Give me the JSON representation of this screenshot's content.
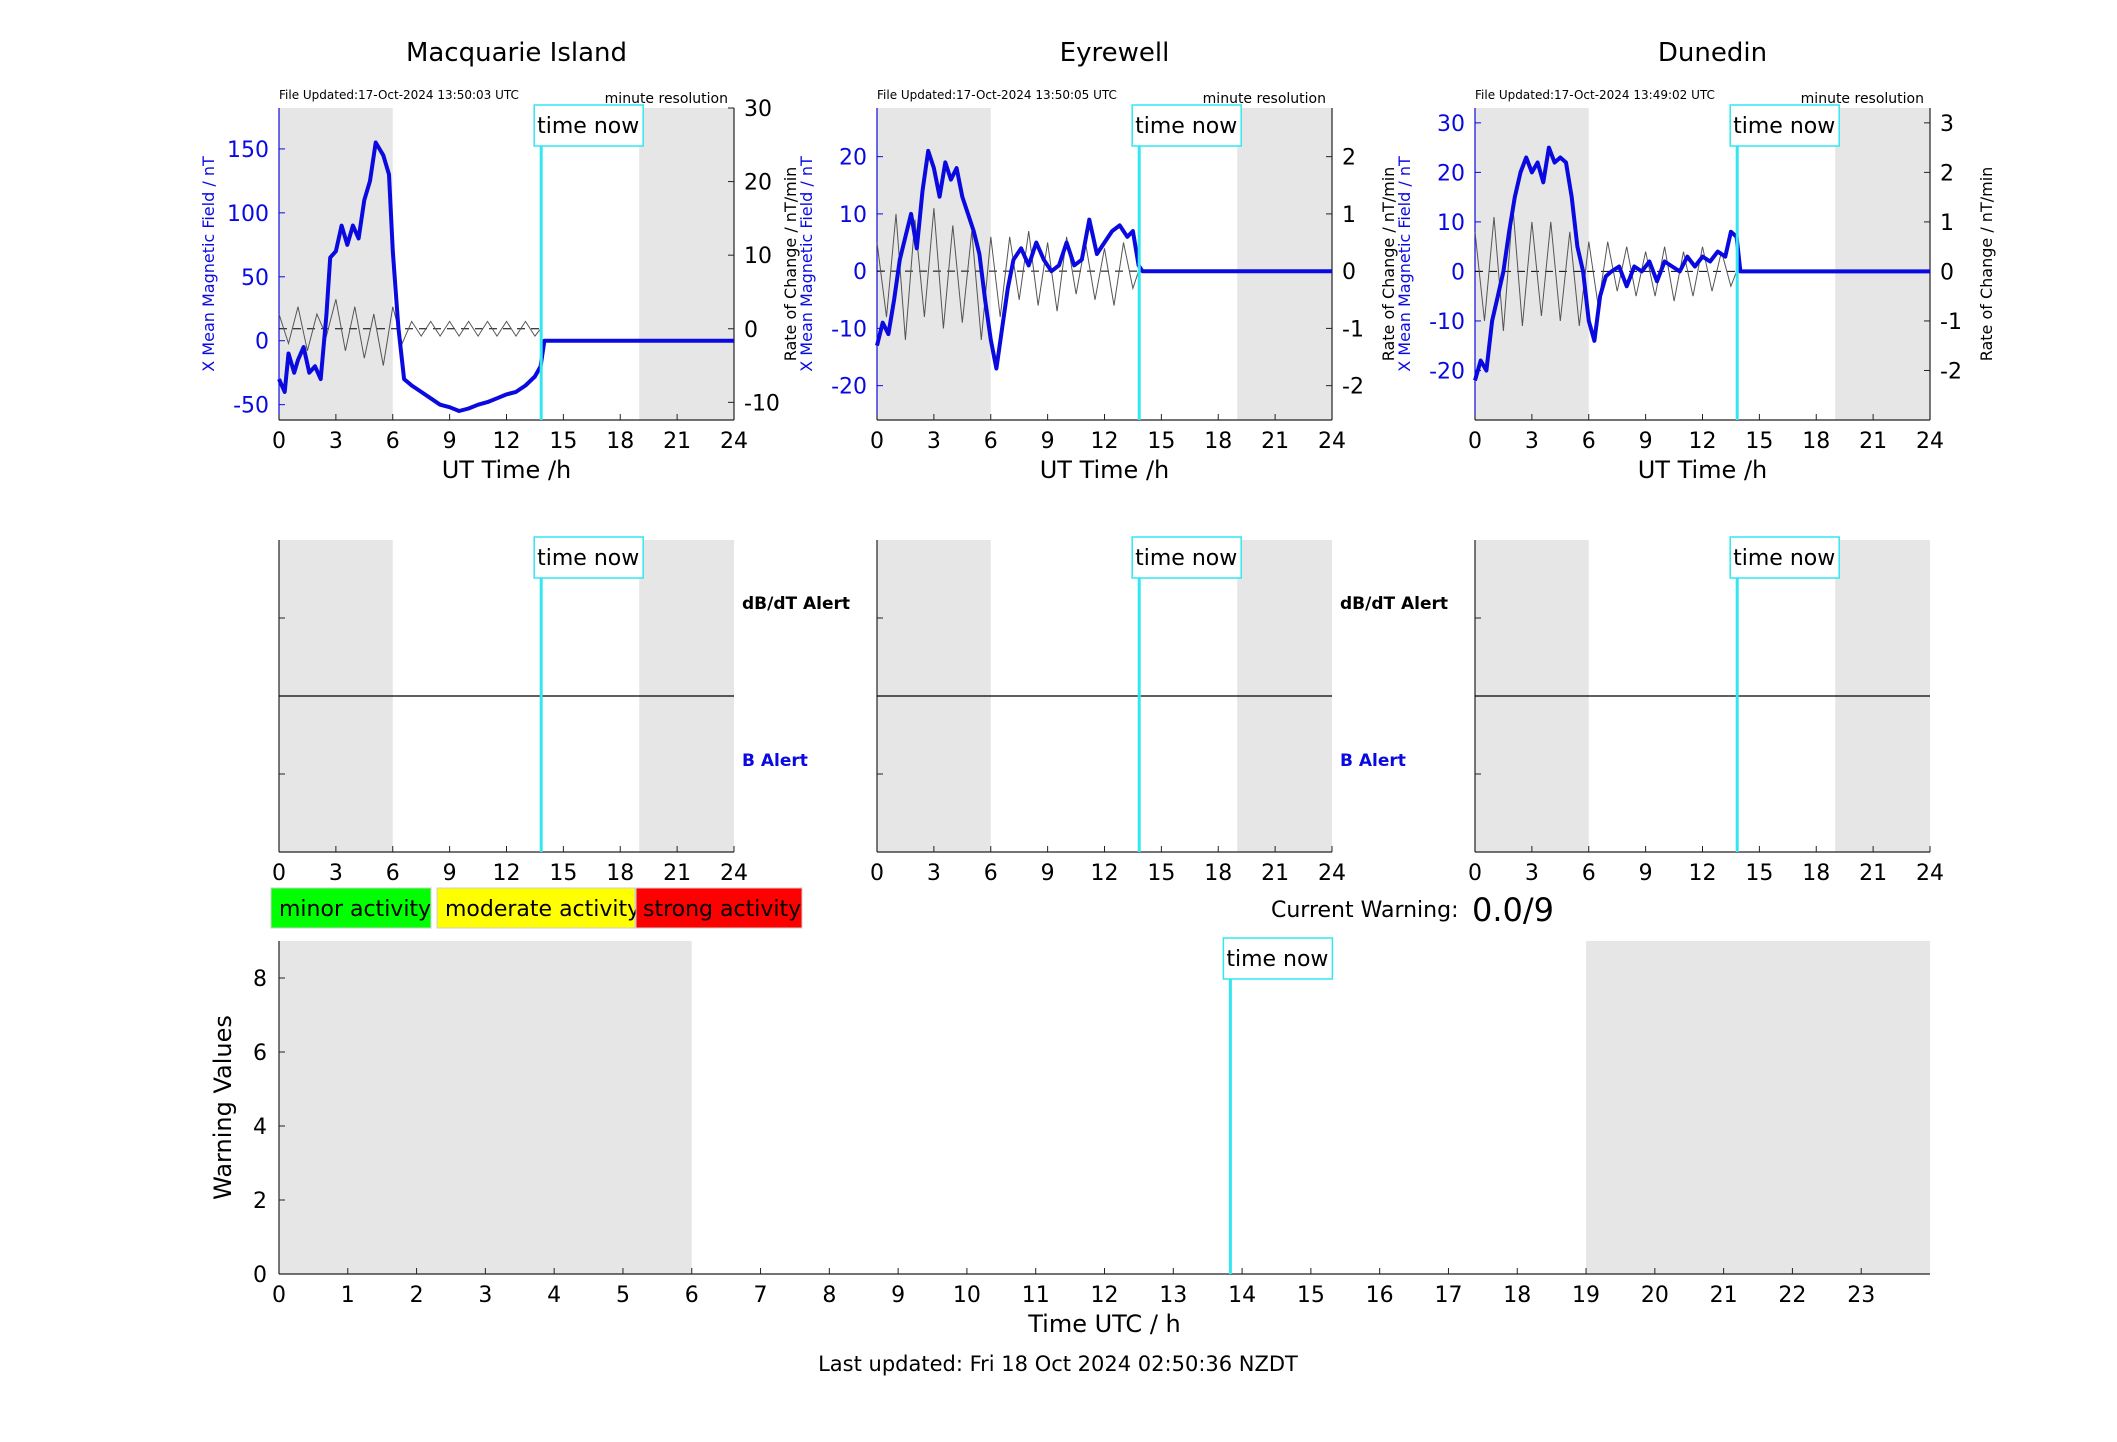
{
  "colors": {
    "blue": "#0a0ae0",
    "cyan": "#33e6f0",
    "night_shading": "#e6e6e6",
    "rate_trace": "#555555",
    "minor": "#00ff00",
    "moderate": "#ffff00",
    "strong": "#ff0000"
  },
  "time_now_label": "time now",
  "legend": {
    "minor": "minor activity",
    "moderate": "moderate activity",
    "strong": "strong activity"
  },
  "current_warning": {
    "label": "Current Warning:",
    "value": "0.0/9"
  },
  "footer": "Last updated: Fri 18 Oct 2024 02:50:36 NZDT",
  "chart_data": [
    {
      "type": "line",
      "title": "Macquarie Island",
      "file_updated": "File Updated:17-Oct-2024 13:50:03 UTC",
      "resolution": "minute resolution",
      "xlabel": "UT Time /h",
      "ylabel_left": "X Mean Magnetic Field / nT",
      "ylabel_right": "Rate of Change / nT/min",
      "xlim": [
        0,
        24
      ],
      "xticks": [
        0,
        3,
        6,
        9,
        12,
        15,
        18,
        21,
        24
      ],
      "ylim_left": [
        -62,
        182
      ],
      "yticks_left": [
        -50,
        0,
        50,
        100,
        150
      ],
      "ylim_right": [
        -12.4,
        30
      ],
      "yticks_right": [
        -10,
        0,
        10,
        20,
        30
      ],
      "night_bands": [
        [
          0,
          6
        ],
        [
          19,
          24
        ]
      ],
      "time_now": 13.83,
      "field_series": {
        "name": "X Mean Magnetic Field",
        "x": [
          0,
          0.3,
          0.5,
          0.8,
          1.0,
          1.3,
          1.6,
          1.9,
          2.2,
          2.5,
          2.7,
          3.0,
          3.3,
          3.6,
          3.9,
          4.2,
          4.5,
          4.8,
          5.1,
          5.3,
          5.5,
          5.8,
          6.0,
          6.3,
          6.6,
          7.0,
          7.5,
          8.0,
          8.5,
          9.0,
          9.5,
          10.0,
          10.5,
          11.0,
          11.5,
          12.0,
          12.5,
          13.0,
          13.5,
          13.8,
          14,
          24
        ],
        "y": [
          -30,
          -40,
          -10,
          -25,
          -15,
          -5,
          -25,
          -20,
          -30,
          20,
          65,
          70,
          90,
          75,
          90,
          80,
          110,
          125,
          155,
          150,
          145,
          130,
          70,
          10,
          -30,
          -35,
          -40,
          -45,
          -50,
          -52,
          -55,
          -53,
          -50,
          -48,
          -45,
          -42,
          -40,
          -35,
          -28,
          -20,
          0,
          0
        ]
      },
      "rate_series": {
        "name": "Rate of Change",
        "x": [
          0,
          0.5,
          1,
          1.5,
          2,
          2.5,
          3,
          3.5,
          4,
          4.5,
          5,
          5.5,
          6,
          6.5,
          7,
          7.5,
          8,
          8.5,
          9,
          9.5,
          10,
          10.5,
          11,
          11.5,
          12,
          12.5,
          13,
          13.5,
          13.8
        ],
        "y": [
          2,
          -2,
          3,
          -3,
          2,
          -1,
          4,
          -3,
          3,
          -4,
          2,
          -5,
          3,
          -2,
          1,
          -1,
          1,
          -1,
          1,
          -1,
          1,
          -1,
          1,
          -1,
          1,
          -1,
          1,
          -1,
          0
        ]
      }
    },
    {
      "type": "line",
      "title": "Eyrewell",
      "file_updated": "File Updated:17-Oct-2024 13:50:05 UTC",
      "resolution": "minute resolution",
      "xlabel": "UT Time /h",
      "ylabel_left": "X Mean Magnetic Field / nT",
      "ylabel_right": "Rate of Change / nT/min",
      "xlim": [
        0,
        24
      ],
      "xticks": [
        0,
        3,
        6,
        9,
        12,
        15,
        18,
        21,
        24
      ],
      "ylim_left": [
        -26,
        28.5
      ],
      "yticks_left": [
        -20,
        -10,
        0,
        10,
        20
      ],
      "ylim_right": [
        -2.6,
        2.85
      ],
      "yticks_right": [
        -2,
        -1,
        0,
        1,
        2
      ],
      "night_bands": [
        [
          0,
          6
        ],
        [
          19,
          24
        ]
      ],
      "time_now": 13.83,
      "field_series": {
        "name": "X Mean Magnetic Field",
        "x": [
          0,
          0.3,
          0.6,
          0.9,
          1.2,
          1.5,
          1.8,
          2.1,
          2.4,
          2.7,
          3.0,
          3.3,
          3.6,
          3.9,
          4.2,
          4.5,
          4.8,
          5.1,
          5.4,
          5.7,
          6.0,
          6.3,
          6.6,
          6.9,
          7.2,
          7.6,
          8.0,
          8.4,
          8.8,
          9.2,
          9.6,
          10.0,
          10.4,
          10.8,
          11.2,
          11.6,
          12.0,
          12.4,
          12.8,
          13.2,
          13.5,
          13.8,
          14,
          24
        ],
        "y": [
          -13,
          -9,
          -11,
          -5,
          2,
          6,
          10,
          4,
          14,
          21,
          18,
          13,
          19,
          16,
          18,
          13,
          10,
          7,
          3,
          -5,
          -12,
          -17,
          -10,
          -3,
          2,
          4,
          1,
          5,
          2,
          0,
          1,
          5,
          1,
          2,
          9,
          3,
          5,
          7,
          8,
          6,
          7,
          1,
          0,
          0
        ]
      },
      "rate_series": {
        "name": "Rate of Change",
        "x": [
          0,
          0.5,
          1,
          1.5,
          2,
          2.5,
          3,
          3.5,
          4,
          4.5,
          5,
          5.5,
          6,
          6.5,
          7,
          7.5,
          8,
          8.5,
          9,
          9.5,
          10,
          10.5,
          11,
          11.5,
          12,
          12.5,
          13,
          13.5,
          13.8
        ],
        "y": [
          0.5,
          -0.8,
          1,
          -1.2,
          0.9,
          -0.8,
          1.1,
          -1,
          0.8,
          -0.9,
          0.7,
          -1.2,
          0.6,
          -0.8,
          0.6,
          -0.5,
          0.7,
          -0.6,
          0.5,
          -0.7,
          0.6,
          -0.4,
          0.5,
          -0.5,
          0.4,
          -0.6,
          0.5,
          -0.3,
          0
        ]
      }
    },
    {
      "type": "line",
      "title": "Dunedin",
      "file_updated": "File Updated:17-Oct-2024 13:49:02 UTC",
      "resolution": "minute resolution",
      "xlabel": "UT Time /h",
      "ylabel_left": "X Mean Magnetic Field / nT",
      "ylabel_right": "Rate of Change / nT/min",
      "xlim": [
        0,
        24
      ],
      "xticks": [
        0,
        3,
        6,
        9,
        12,
        15,
        18,
        21,
        24
      ],
      "ylim_left": [
        -30,
        33
      ],
      "yticks_left": [
        -20,
        -10,
        0,
        10,
        20,
        30
      ],
      "ylim_right": [
        -3,
        3.3
      ],
      "yticks_right": [
        -2,
        -1,
        0,
        1,
        2,
        3
      ],
      "night_bands": [
        [
          0,
          6
        ],
        [
          19,
          24
        ]
      ],
      "time_now": 13.83,
      "field_series": {
        "name": "X Mean Magnetic Field",
        "x": [
          0,
          0.3,
          0.6,
          0.9,
          1.2,
          1.5,
          1.8,
          2.1,
          2.4,
          2.7,
          3.0,
          3.3,
          3.6,
          3.9,
          4.2,
          4.5,
          4.8,
          5.1,
          5.4,
          5.7,
          6.0,
          6.3,
          6.6,
          6.9,
          7.2,
          7.6,
          8.0,
          8.4,
          8.8,
          9.2,
          9.6,
          10.0,
          10.4,
          10.8,
          11.2,
          11.6,
          12.0,
          12.4,
          12.8,
          13.2,
          13.5,
          13.8,
          14,
          24
        ],
        "y": [
          -22,
          -18,
          -20,
          -10,
          -5,
          0,
          8,
          15,
          20,
          23,
          20,
          22,
          18,
          25,
          22,
          23,
          22,
          15,
          5,
          0,
          -10,
          -14,
          -5,
          -1,
          0,
          1,
          -3,
          1,
          0,
          2,
          -2,
          2,
          1,
          0,
          3,
          1,
          3,
          2,
          4,
          3,
          8,
          7,
          0,
          0
        ]
      },
      "rate_series": {
        "name": "Rate of Change",
        "x": [
          0,
          0.5,
          1,
          1.5,
          2,
          2.5,
          3,
          3.5,
          4,
          4.5,
          5,
          5.5,
          6,
          6.5,
          7,
          7.5,
          8,
          8.5,
          9,
          9.5,
          10,
          10.5,
          11,
          11.5,
          12,
          12.5,
          13,
          13.5,
          13.8
        ],
        "y": [
          0.8,
          -1,
          1.1,
          -1.2,
          1.3,
          -1.1,
          1,
          -0.9,
          1,
          -1,
          0.8,
          -1.1,
          0.6,
          -0.7,
          0.6,
          -0.4,
          0.5,
          -0.5,
          0.4,
          -0.5,
          0.5,
          -0.6,
          0.4,
          -0.5,
          0.5,
          -0.4,
          0.4,
          -0.3,
          0
        ]
      }
    },
    {
      "type": "line",
      "title": "",
      "xlabel": "",
      "labels": {
        "upper": "dB/dT Alert",
        "lower": "B Alert"
      },
      "xlim": [
        0,
        24
      ],
      "xticks": [
        0,
        3,
        6,
        9,
        12,
        15,
        18,
        21,
        24
      ],
      "night_bands": [
        [
          0,
          6
        ],
        [
          19,
          24
        ]
      ],
      "time_now": 13.83
    },
    {
      "type": "line",
      "title": "",
      "xlabel": "",
      "labels": {
        "upper": "dB/dT Alert",
        "lower": "B Alert"
      },
      "xlim": [
        0,
        24
      ],
      "xticks": [
        0,
        3,
        6,
        9,
        12,
        15,
        18,
        21,
        24
      ],
      "night_bands": [
        [
          0,
          6
        ],
        [
          19,
          24
        ]
      ],
      "time_now": 13.83
    },
    {
      "type": "line",
      "title": "",
      "xlabel": "",
      "labels": {
        "upper": "",
        "lower": ""
      },
      "xlim": [
        0,
        24
      ],
      "xticks": [
        0,
        3,
        6,
        9,
        12,
        15,
        18,
        21,
        24
      ],
      "night_bands": [
        [
          0,
          6
        ],
        [
          19,
          24
        ]
      ],
      "time_now": 13.83
    },
    {
      "type": "line",
      "title": "",
      "xlabel": "Time UTC / h",
      "ylabel": "Warning Values",
      "xlim": [
        0,
        24
      ],
      "xticks": [
        0,
        1,
        2,
        3,
        4,
        5,
        6,
        7,
        8,
        9,
        10,
        11,
        12,
        13,
        14,
        15,
        16,
        17,
        18,
        19,
        20,
        21,
        22,
        23
      ],
      "ylim": [
        0,
        9
      ],
      "yticks": [
        0,
        2,
        4,
        6,
        8
      ],
      "night_bands": [
        [
          0,
          6
        ],
        [
          19,
          24
        ]
      ],
      "time_now": 13.83
    }
  ]
}
